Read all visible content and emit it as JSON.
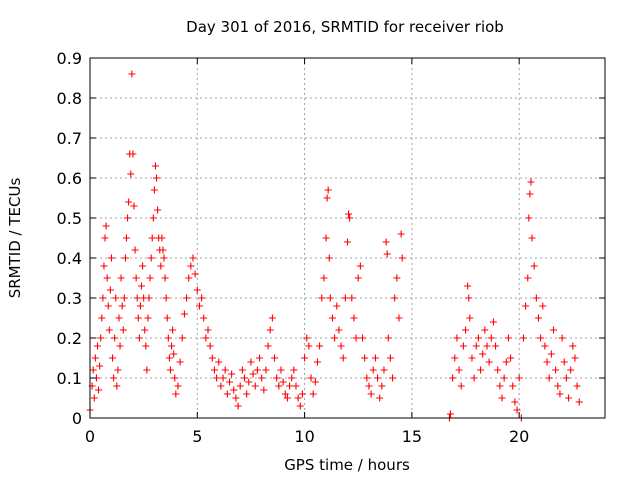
{
  "chart_data": {
    "type": "scatter",
    "title": "Day 301 of 2016, SRMTID for receiver riob",
    "xlabel": "GPS time / hours",
    "ylabel": "SRMTID / TECUs",
    "xlim": [
      0,
      24
    ],
    "ylim": [
      0,
      0.9
    ],
    "xticks": [
      0,
      5,
      10,
      15,
      20
    ],
    "xtick_labels": [
      "0",
      "5",
      "10",
      "15",
      "20"
    ],
    "yticks": [
      0,
      0.1,
      0.2,
      0.3,
      0.4,
      0.5,
      0.6,
      0.7,
      0.8,
      0.9
    ],
    "ytick_labels": [
      "0",
      "0.1",
      "0.2",
      "0.3",
      "0.4",
      "0.5",
      "0.6",
      "0.7",
      "0.8",
      "0.9"
    ],
    "grid": true,
    "marker": "+",
    "color": "#ff0000",
    "series": [
      {
        "name": "SRMTID",
        "points": [
          [
            0.0,
            0.02
          ],
          [
            0.1,
            0.08
          ],
          [
            0.15,
            0.12
          ],
          [
            0.2,
            0.05
          ],
          [
            0.25,
            0.15
          ],
          [
            0.3,
            0.1
          ],
          [
            0.35,
            0.18
          ],
          [
            0.4,
            0.07
          ],
          [
            0.45,
            0.13
          ],
          [
            0.5,
            0.2
          ],
          [
            0.55,
            0.25
          ],
          [
            0.6,
            0.3
          ],
          [
            0.65,
            0.38
          ],
          [
            0.7,
            0.45
          ],
          [
            0.75,
            0.48
          ],
          [
            0.8,
            0.35
          ],
          [
            0.85,
            0.28
          ],
          [
            0.9,
            0.22
          ],
          [
            0.95,
            0.32
          ],
          [
            1.0,
            0.4
          ],
          [
            1.05,
            0.15
          ],
          [
            1.1,
            0.1
          ],
          [
            1.15,
            0.2
          ],
          [
            1.2,
            0.3
          ],
          [
            1.25,
            0.08
          ],
          [
            1.3,
            0.12
          ],
          [
            1.35,
            0.25
          ],
          [
            1.4,
            0.18
          ],
          [
            1.45,
            0.35
          ],
          [
            1.5,
            0.28
          ],
          [
            1.55,
            0.22
          ],
          [
            1.6,
            0.3
          ],
          [
            1.65,
            0.4
          ],
          [
            1.7,
            0.45
          ],
          [
            1.75,
            0.5
          ],
          [
            1.8,
            0.54
          ],
          [
            1.85,
            0.66
          ],
          [
            1.9,
            0.61
          ],
          [
            1.95,
            0.86
          ],
          [
            2.0,
            0.66
          ],
          [
            2.05,
            0.53
          ],
          [
            2.1,
            0.42
          ],
          [
            2.15,
            0.35
          ],
          [
            2.2,
            0.3
          ],
          [
            2.25,
            0.25
          ],
          [
            2.3,
            0.2
          ],
          [
            2.35,
            0.28
          ],
          [
            2.4,
            0.33
          ],
          [
            2.45,
            0.38
          ],
          [
            2.5,
            0.3
          ],
          [
            2.55,
            0.22
          ],
          [
            2.6,
            0.18
          ],
          [
            2.65,
            0.12
          ],
          [
            2.7,
            0.25
          ],
          [
            2.75,
            0.3
          ],
          [
            2.8,
            0.35
          ],
          [
            2.85,
            0.4
          ],
          [
            2.9,
            0.45
          ],
          [
            2.95,
            0.5
          ],
          [
            3.0,
            0.57
          ],
          [
            3.05,
            0.63
          ],
          [
            3.1,
            0.6
          ],
          [
            3.15,
            0.52
          ],
          [
            3.2,
            0.45
          ],
          [
            3.25,
            0.42
          ],
          [
            3.3,
            0.38
          ],
          [
            3.35,
            0.45
          ],
          [
            3.4,
            0.42
          ],
          [
            3.45,
            0.4
          ],
          [
            3.5,
            0.35
          ],
          [
            3.55,
            0.3
          ],
          [
            3.6,
            0.25
          ],
          [
            3.65,
            0.2
          ],
          [
            3.7,
            0.15
          ],
          [
            3.75,
            0.12
          ],
          [
            3.8,
            0.18
          ],
          [
            3.85,
            0.22
          ],
          [
            3.9,
            0.16
          ],
          [
            3.95,
            0.1
          ],
          [
            4.0,
            0.06
          ],
          [
            4.1,
            0.08
          ],
          [
            4.2,
            0.14
          ],
          [
            4.3,
            0.2
          ],
          [
            4.4,
            0.26
          ],
          [
            4.5,
            0.3
          ],
          [
            4.6,
            0.35
          ],
          [
            4.7,
            0.38
          ],
          [
            4.8,
            0.4
          ],
          [
            4.9,
            0.36
          ],
          [
            5.0,
            0.32
          ],
          [
            5.1,
            0.28
          ],
          [
            5.2,
            0.3
          ],
          [
            5.3,
            0.25
          ],
          [
            5.4,
            0.2
          ],
          [
            5.5,
            0.22
          ],
          [
            5.6,
            0.18
          ],
          [
            5.7,
            0.15
          ],
          [
            5.8,
            0.12
          ],
          [
            5.9,
            0.1
          ],
          [
            6.0,
            0.14
          ],
          [
            6.1,
            0.08
          ],
          [
            6.2,
            0.1
          ],
          [
            6.3,
            0.12
          ],
          [
            6.4,
            0.06
          ],
          [
            6.5,
            0.09
          ],
          [
            6.6,
            0.11
          ],
          [
            6.7,
            0.07
          ],
          [
            6.8,
            0.05
          ],
          [
            6.9,
            0.03
          ],
          [
            7.0,
            0.08
          ],
          [
            7.1,
            0.12
          ],
          [
            7.2,
            0.1
          ],
          [
            7.3,
            0.06
          ],
          [
            7.4,
            0.09
          ],
          [
            7.5,
            0.14
          ],
          [
            7.6,
            0.11
          ],
          [
            7.7,
            0.08
          ],
          [
            7.8,
            0.12
          ],
          [
            7.9,
            0.15
          ],
          [
            8.0,
            0.1
          ],
          [
            8.1,
            0.07
          ],
          [
            8.2,
            0.12
          ],
          [
            8.3,
            0.18
          ],
          [
            8.4,
            0.22
          ],
          [
            8.5,
            0.25
          ],
          [
            8.6,
            0.15
          ],
          [
            8.7,
            0.1
          ],
          [
            8.8,
            0.08
          ],
          [
            8.9,
            0.12
          ],
          [
            9.0,
            0.09
          ],
          [
            9.1,
            0.06
          ],
          [
            9.2,
            0.05
          ],
          [
            9.3,
            0.08
          ],
          [
            9.4,
            0.1
          ],
          [
            9.5,
            0.12
          ],
          [
            9.6,
            0.08
          ],
          [
            9.7,
            0.05
          ],
          [
            9.8,
            0.03
          ],
          [
            9.9,
            0.06
          ],
          [
            10.0,
            0.15
          ],
          [
            10.1,
            0.2
          ],
          [
            10.2,
            0.18
          ],
          [
            10.3,
            0.1
          ],
          [
            10.4,
            0.06
          ],
          [
            10.5,
            0.09
          ],
          [
            10.6,
            0.14
          ],
          [
            10.7,
            0.18
          ],
          [
            10.8,
            0.3
          ],
          [
            10.9,
            0.35
          ],
          [
            11.0,
            0.45
          ],
          [
            11.05,
            0.55
          ],
          [
            11.1,
            0.57
          ],
          [
            11.15,
            0.4
          ],
          [
            11.2,
            0.3
          ],
          [
            11.3,
            0.25
          ],
          [
            11.4,
            0.2
          ],
          [
            11.5,
            0.28
          ],
          [
            11.6,
            0.22
          ],
          [
            11.7,
            0.18
          ],
          [
            11.8,
            0.15
          ],
          [
            11.9,
            0.3
          ],
          [
            12.0,
            0.44
          ],
          [
            12.05,
            0.51
          ],
          [
            12.1,
            0.5
          ],
          [
            12.2,
            0.3
          ],
          [
            12.3,
            0.25
          ],
          [
            12.4,
            0.2
          ],
          [
            12.5,
            0.35
          ],
          [
            12.6,
            0.38
          ],
          [
            12.7,
            0.2
          ],
          [
            12.8,
            0.15
          ],
          [
            12.9,
            0.1
          ],
          [
            13.0,
            0.08
          ],
          [
            13.1,
            0.06
          ],
          [
            13.2,
            0.12
          ],
          [
            13.3,
            0.15
          ],
          [
            13.4,
            0.1
          ],
          [
            13.5,
            0.05
          ],
          [
            13.6,
            0.08
          ],
          [
            13.7,
            0.12
          ],
          [
            13.8,
            0.44
          ],
          [
            13.85,
            0.41
          ],
          [
            13.9,
            0.2
          ],
          [
            14.0,
            0.15
          ],
          [
            14.1,
            0.1
          ],
          [
            14.2,
            0.3
          ],
          [
            14.3,
            0.35
          ],
          [
            14.4,
            0.25
          ],
          [
            14.5,
            0.46
          ],
          [
            14.55,
            0.4
          ],
          [
            16.75,
            0.0
          ],
          [
            16.8,
            0.01
          ],
          [
            16.9,
            0.1
          ],
          [
            17.0,
            0.15
          ],
          [
            17.1,
            0.2
          ],
          [
            17.2,
            0.12
          ],
          [
            17.3,
            0.08
          ],
          [
            17.4,
            0.18
          ],
          [
            17.5,
            0.22
          ],
          [
            17.6,
            0.33
          ],
          [
            17.65,
            0.3
          ],
          [
            17.7,
            0.25
          ],
          [
            17.8,
            0.15
          ],
          [
            17.9,
            0.1
          ],
          [
            18.0,
            0.18
          ],
          [
            18.1,
            0.2
          ],
          [
            18.2,
            0.12
          ],
          [
            18.3,
            0.16
          ],
          [
            18.4,
            0.22
          ],
          [
            18.5,
            0.18
          ],
          [
            18.6,
            0.14
          ],
          [
            18.7,
            0.2
          ],
          [
            18.8,
            0.24
          ],
          [
            18.9,
            0.18
          ],
          [
            19.0,
            0.12
          ],
          [
            19.1,
            0.08
          ],
          [
            19.2,
            0.05
          ],
          [
            19.3,
            0.1
          ],
          [
            19.4,
            0.14
          ],
          [
            19.5,
            0.2
          ],
          [
            19.6,
            0.15
          ],
          [
            19.7,
            0.08
          ],
          [
            19.8,
            0.04
          ],
          [
            19.9,
            0.02
          ],
          [
            20.0,
            0.1
          ],
          [
            20.1,
            0.0
          ],
          [
            20.2,
            0.2
          ],
          [
            20.3,
            0.28
          ],
          [
            20.4,
            0.35
          ],
          [
            20.45,
            0.5
          ],
          [
            20.5,
            0.56
          ],
          [
            20.55,
            0.59
          ],
          [
            20.6,
            0.45
          ],
          [
            20.7,
            0.38
          ],
          [
            20.8,
            0.3
          ],
          [
            20.9,
            0.25
          ],
          [
            21.0,
            0.2
          ],
          [
            21.1,
            0.28
          ],
          [
            21.2,
            0.18
          ],
          [
            21.3,
            0.14
          ],
          [
            21.4,
            0.1
          ],
          [
            21.5,
            0.16
          ],
          [
            21.6,
            0.22
          ],
          [
            21.7,
            0.12
          ],
          [
            21.8,
            0.08
          ],
          [
            21.9,
            0.06
          ],
          [
            22.0,
            0.2
          ],
          [
            22.1,
            0.14
          ],
          [
            22.2,
            0.1
          ],
          [
            22.3,
            0.05
          ],
          [
            22.4,
            0.12
          ],
          [
            22.5,
            0.18
          ],
          [
            22.6,
            0.15
          ],
          [
            22.7,
            0.08
          ],
          [
            22.8,
            0.04
          ]
        ]
      }
    ]
  }
}
